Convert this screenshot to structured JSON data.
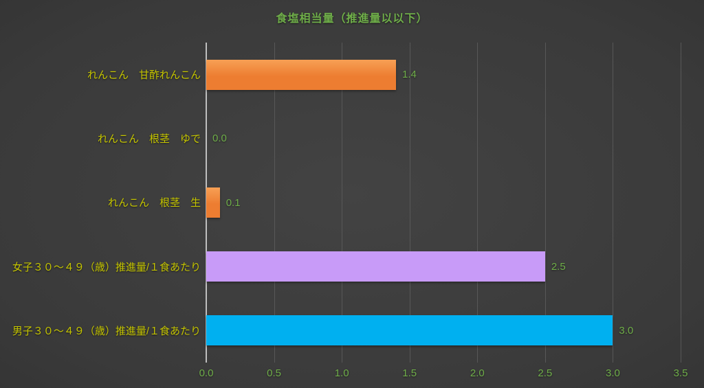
{
  "chart_data": {
    "type": "bar",
    "orientation": "horizontal",
    "title": "食塩相当量（推進量以以下）",
    "categories": [
      "れんこん　甘酢れんこん",
      "れんこん　根茎　ゆで",
      "れんこん　根茎　生",
      "女子３０〜４９（歳）推進量/１食あたり",
      "男子３０〜４９（歳）推進量/１食あたり"
    ],
    "values": [
      1.4,
      0.0,
      0.1,
      2.5,
      3.0
    ],
    "data_labels": [
      "1.4",
      "0.0",
      "0.1",
      "2.5",
      "3.0"
    ],
    "bar_colors": [
      "#ED7D31",
      "#ED7D31",
      "#ED7D31",
      "#C89BF8",
      "#00B0F0"
    ],
    "bar_colors_light": [
      "#F7A055",
      "#F7A055",
      "#F7A055",
      null,
      null
    ],
    "xlim": [
      0,
      3.5
    ],
    "x_ticks": [
      0.0,
      0.5,
      1.0,
      1.5,
      2.0,
      2.5,
      3.0,
      3.5
    ],
    "x_tick_labels": [
      "0.0",
      "0.5",
      "1.0",
      "1.5",
      "2.0",
      "2.5",
      "3.0",
      "3.5"
    ],
    "grid": "vertical",
    "legend": "none",
    "colors": {
      "title": "#6FAE49",
      "category_label": "#C5C500",
      "value_label": "#6FAE49",
      "tick_label": "#6FAE49",
      "axis_line": "#BFBFBF",
      "gridline": "#585858"
    }
  }
}
